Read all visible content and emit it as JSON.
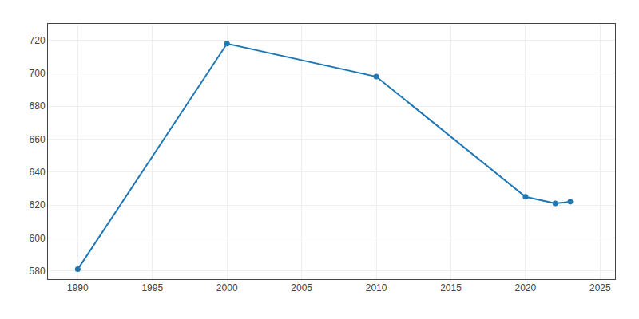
{
  "chart_data": {
    "type": "line",
    "x": [
      1990,
      2000,
      2010,
      2020,
      2022,
      2023
    ],
    "values": [
      581,
      718,
      698,
      625,
      621,
      622
    ],
    "marker": "circle",
    "xlim": [
      1988,
      2026
    ],
    "ylim": [
      575,
      730
    ],
    "xticks": [
      1990,
      1995,
      2000,
      2005,
      2010,
      2015,
      2020,
      2025
    ],
    "yticks": [
      580,
      600,
      620,
      640,
      660,
      680,
      700,
      720
    ],
    "grid": true
  }
}
